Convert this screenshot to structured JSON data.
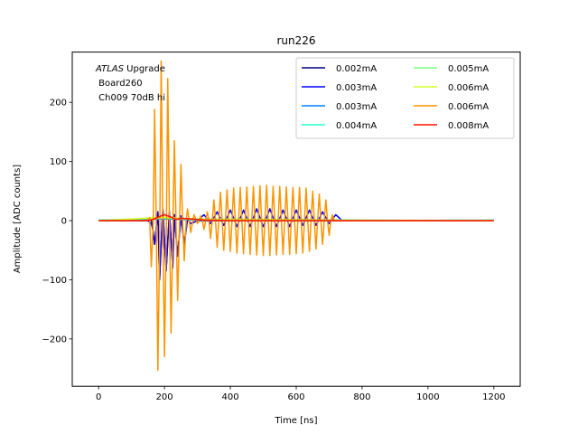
{
  "chart_data": {
    "type": "line",
    "title": "run226",
    "xlabel": "Time [ns]",
    "ylabel": "Amplitude [ADC counts]",
    "xlim": [
      -80,
      1280
    ],
    "ylim": [
      -280,
      285
    ],
    "xticks": [
      0,
      200,
      400,
      600,
      800,
      1000,
      1200
    ],
    "yticks": [
      -200,
      -100,
      0,
      100,
      200
    ],
    "xtick_labels": [
      "0",
      "200",
      "400",
      "600",
      "800",
      "1000",
      "1200"
    ],
    "ytick_labels": [
      "−200",
      "−100",
      "0",
      "100",
      "200"
    ],
    "grid": false,
    "legend_position": "top-right",
    "legend_columns": 2,
    "annotation": {
      "italic": "ATLAS",
      "rest": " Upgrade",
      "line2": " Board260",
      "line3": " Ch009 70dB hi"
    },
    "series": [
      {
        "name": "0.002mA",
        "color": "#00007f",
        "x": [
          0,
          150,
          160,
          170,
          180,
          185,
          195,
          205,
          215,
          225,
          230,
          240,
          250,
          260,
          270,
          280,
          300,
          1200
        ],
        "y": [
          0,
          0,
          2,
          -40,
          15,
          -100,
          20,
          -85,
          15,
          -80,
          10,
          -60,
          8,
          -40,
          3,
          -5,
          0,
          0
        ]
      },
      {
        "name": "0.003mA",
        "color": "#0000ff",
        "x": [
          0,
          150,
          160,
          165,
          170,
          180,
          185,
          195,
          205,
          215,
          225,
          230,
          240,
          250,
          260,
          270,
          280,
          300,
          320,
          340,
          360,
          380,
          400,
          420,
          440,
          460,
          480,
          500,
          520,
          540,
          560,
          580,
          600,
          620,
          640,
          660,
          680,
          700,
          720,
          740,
          1200
        ],
        "y": [
          0,
          0,
          -5,
          -15,
          -40,
          15,
          -100,
          20,
          -85,
          15,
          -80,
          10,
          -60,
          8,
          -40,
          3,
          -5,
          0,
          10,
          -5,
          15,
          -8,
          18,
          -10,
          18,
          -10,
          20,
          -10,
          20,
          -10,
          18,
          -10,
          18,
          -8,
          18,
          -8,
          15,
          -5,
          10,
          0,
          0
        ]
      },
      {
        "name": "0.003mA",
        "color": "#0080ff",
        "x": [
          0,
          200,
          300,
          600,
          800,
          1200
        ],
        "y": [
          0,
          3,
          1,
          2,
          0,
          0
        ]
      },
      {
        "name": "0.004mA",
        "color": "#29ffce",
        "x": [
          0,
          200,
          300,
          600,
          800,
          1200
        ],
        "y": [
          1,
          4,
          2,
          1,
          0,
          1
        ]
      },
      {
        "name": "0.005mA",
        "color": "#7dff7a",
        "x": [
          0,
          200,
          300,
          600,
          800,
          1200
        ],
        "y": [
          0,
          5,
          3,
          2,
          1,
          0
        ]
      },
      {
        "name": "0.006mA",
        "color": "#ceff29",
        "x": [
          0,
          200,
          300,
          600,
          800,
          1200
        ],
        "y": [
          0,
          6,
          2,
          1,
          0,
          0
        ]
      },
      {
        "name": "0.006mA",
        "color": "#ff9400",
        "x": [
          0,
          145,
          155,
          160,
          166,
          170,
          175,
          180,
          186,
          190,
          195,
          200,
          206,
          210,
          215,
          220,
          226,
          230,
          235,
          240,
          246,
          250,
          255,
          260,
          266,
          270,
          275,
          280,
          286,
          290,
          300,
          305,
          310,
          315,
          320,
          325,
          330,
          335,
          340,
          345,
          350,
          355,
          360,
          365,
          370,
          375,
          380,
          385,
          390,
          395,
          400,
          405,
          410,
          415,
          420,
          425,
          430,
          435,
          440,
          445,
          450,
          455,
          460,
          465,
          470,
          475,
          480,
          485,
          490,
          495,
          500,
          505,
          510,
          515,
          520,
          525,
          530,
          535,
          540,
          545,
          550,
          555,
          560,
          565,
          570,
          575,
          580,
          585,
          590,
          595,
          600,
          605,
          610,
          615,
          620,
          625,
          630,
          635,
          640,
          645,
          650,
          655,
          660,
          665,
          670,
          675,
          680,
          685,
          690,
          695,
          700,
          705,
          710,
          715,
          720,
          730,
          760,
          1200
        ],
        "y": [
          0,
          0,
          5,
          -78,
          0,
          188,
          0,
          -253,
          0,
          270,
          0,
          -230,
          0,
          240,
          0,
          -190,
          0,
          135,
          0,
          -135,
          0,
          95,
          0,
          -68,
          0,
          20,
          0,
          -20,
          0,
          10,
          -5,
          0,
          8,
          0,
          -15,
          0,
          15,
          0,
          -30,
          0,
          35,
          0,
          -45,
          0,
          48,
          0,
          -50,
          0,
          52,
          0,
          -52,
          0,
          55,
          0,
          -55,
          0,
          56,
          0,
          -56,
          0,
          57,
          0,
          -57,
          0,
          58,
          0,
          -58,
          0,
          59,
          0,
          -59,
          0,
          60,
          0,
          -59,
          0,
          58,
          0,
          -58,
          0,
          58,
          0,
          -57,
          0,
          57,
          0,
          -57,
          0,
          56,
          0,
          -56,
          0,
          56,
          0,
          -55,
          0,
          55,
          0,
          -52,
          0,
          50,
          0,
          -48,
          0,
          45,
          0,
          -40,
          0,
          35,
          0,
          -25,
          0,
          10,
          0,
          0,
          0,
          0,
          0
        ]
      },
      {
        "name": "0.008mA",
        "color": "#ff1300",
        "x": [
          0,
          150,
          170,
          185,
          200,
          210,
          220,
          235,
          250,
          280,
          320,
          400,
          500,
          600,
          700,
          800,
          1200
        ],
        "y": [
          0,
          0,
          3,
          7,
          10,
          8,
          6,
          2,
          4,
          3,
          1,
          0,
          0,
          0,
          0,
          0,
          0
        ]
      }
    ]
  }
}
